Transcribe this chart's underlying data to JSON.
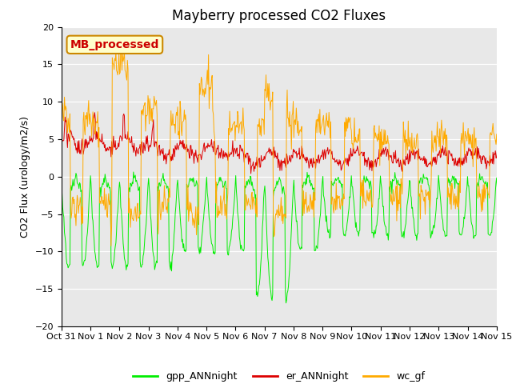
{
  "title": "Mayberry processed CO2 Fluxes",
  "ylabel": "CO2 Flux (urology/m2/s)",
  "ylim": [
    -20,
    20
  ],
  "yticks": [
    -20,
    -15,
    -10,
    -5,
    0,
    5,
    10,
    15,
    20
  ],
  "n_days": 16,
  "n_pts": 768,
  "color_gpp": "#00ee00",
  "color_er": "#dd0000",
  "color_wc": "#ffaa00",
  "legend_labels": [
    "gpp_ANNnight",
    "er_ANNnight",
    "wc_gf"
  ],
  "annotation_text": "MB_processed",
  "annotation_bg": "#ffffcc",
  "annotation_edge": "#cc8800",
  "annotation_color": "#cc0000",
  "bg_color": "#e8e8e8",
  "title_fontsize": 12,
  "axis_label_fontsize": 9,
  "tick_label_fontsize": 8,
  "legend_fontsize": 9,
  "xtick_labels": [
    "Oct 31",
    "Nov 1",
    "Nov 2",
    "Nov 3",
    "Nov 4",
    "Nov 5",
    "Nov 6",
    "Nov 7",
    "Nov 8",
    "Nov 9",
    "Nov 10",
    "Nov 11",
    "Nov 12",
    "Nov 13",
    "Nov 14",
    "Nov 15"
  ],
  "xtick_positions": [
    0,
    1,
    2,
    3,
    4,
    5,
    6,
    7,
    8,
    9,
    10,
    11,
    12,
    13,
    14,
    15
  ]
}
